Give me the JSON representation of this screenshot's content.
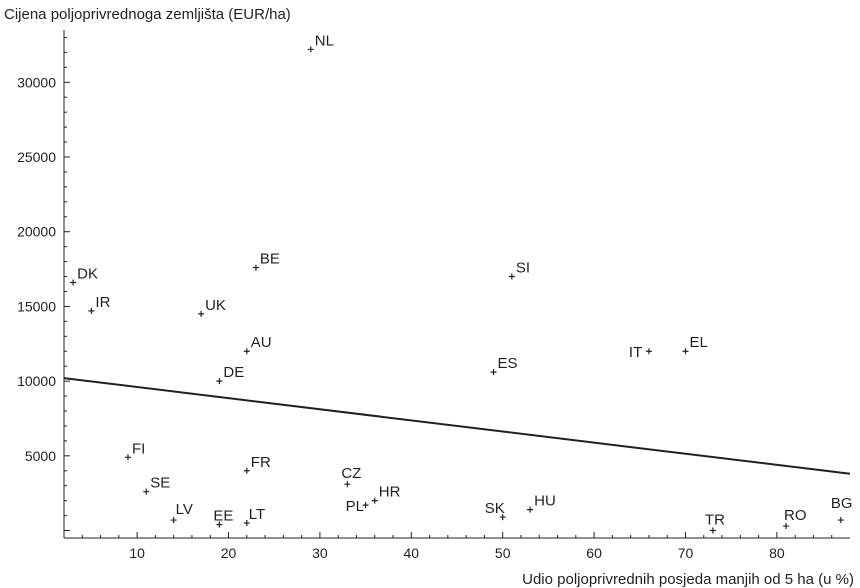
{
  "chart_data": {
    "type": "scatter",
    "title": "",
    "xlabel": "Udio poljoprivrednih posjeda manjih od 5 ha (u %)",
    "ylabel": "Cijena poljoprivrednoga zemljišta (EUR/ha)",
    "xlim": [
      2,
      88
    ],
    "ylim": [
      -500,
      33500
    ],
    "x_ticks": [
      10,
      20,
      30,
      40,
      50,
      60,
      70,
      80
    ],
    "y_ticks": [
      5000,
      10000,
      15000,
      20000,
      25000,
      30000
    ],
    "grid": false,
    "points": [
      {
        "label": "NL",
        "x": 29,
        "y": 32200
      },
      {
        "label": "DK",
        "x": 3,
        "y": 16600
      },
      {
        "label": "IR",
        "x": 5,
        "y": 14700
      },
      {
        "label": "BE",
        "x": 23,
        "y": 17600
      },
      {
        "label": "UK",
        "x": 17,
        "y": 14500
      },
      {
        "label": "AU",
        "x": 22,
        "y": 12000
      },
      {
        "label": "DE",
        "x": 19,
        "y": 10000
      },
      {
        "label": "SI",
        "x": 51,
        "y": 17000
      },
      {
        "label": "ES",
        "x": 49,
        "y": 10600
      },
      {
        "label": "IT",
        "x": 66,
        "y": 12000
      },
      {
        "label": "EL",
        "x": 70,
        "y": 12000
      },
      {
        "label": "FI",
        "x": 9,
        "y": 4900
      },
      {
        "label": "FR",
        "x": 22,
        "y": 4000
      },
      {
        "label": "SE",
        "x": 11,
        "y": 2600
      },
      {
        "label": "CZ",
        "x": 33,
        "y": 3100
      },
      {
        "label": "HR",
        "x": 36,
        "y": 2000
      },
      {
        "label": "PL",
        "x": 35,
        "y": 1700
      },
      {
        "label": "LV",
        "x": 14,
        "y": 700
      },
      {
        "label": "EE",
        "x": 19,
        "y": 400
      },
      {
        "label": "LT",
        "x": 22,
        "y": 500
      },
      {
        "label": "SK",
        "x": 50,
        "y": 900
      },
      {
        "label": "HU",
        "x": 53,
        "y": 1400
      },
      {
        "label": "TR",
        "x": 73,
        "y": 0
      },
      {
        "label": "RO",
        "x": 81,
        "y": 300
      },
      {
        "label": "BG",
        "x": 87,
        "y": 700
      }
    ],
    "trendline": {
      "x": [
        2,
        88
      ],
      "y": [
        10200,
        3800
      ]
    }
  }
}
